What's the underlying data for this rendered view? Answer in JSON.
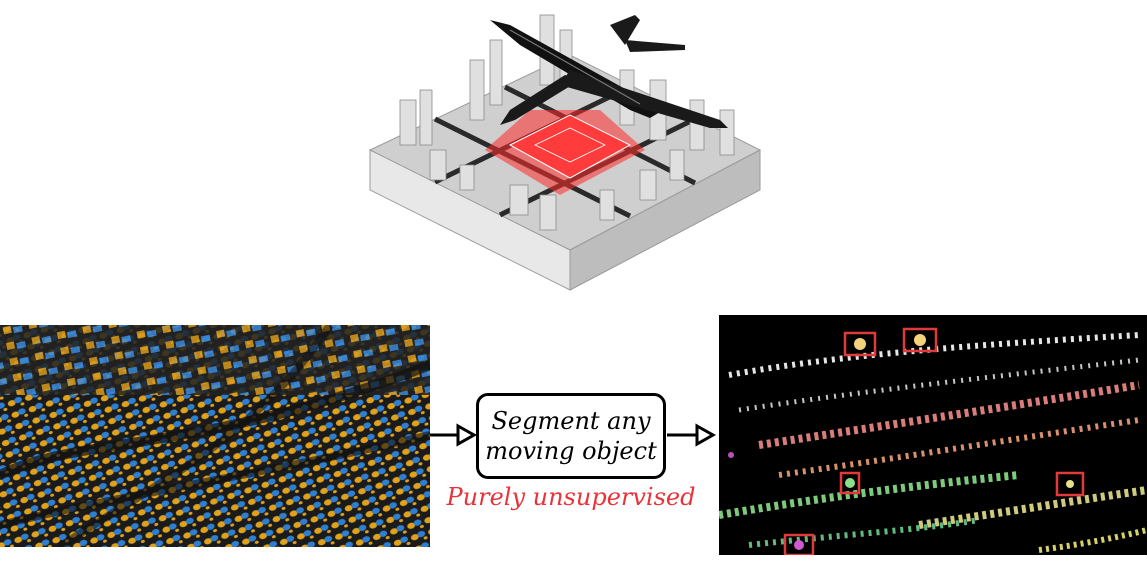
{
  "diagram": {
    "process_box": {
      "line1": "Segment any",
      "line2": "moving object"
    },
    "caption": "Purely unsupervised",
    "colors": {
      "caption": "#e8333a",
      "highlight_box": "#e03a3a",
      "box_border": "#000000",
      "event_yellow": "#e0a21a",
      "event_blue": "#2f7fd1",
      "seg_pink": "#f08a8a",
      "seg_green": "#8be08b",
      "seg_yellow": "#e6e08a",
      "seg_magenta": "#d05ad0"
    },
    "icons": {
      "top": "airplane-over-city-icon",
      "left": "event-camera-pointcloud-image",
      "right": "segmentation-result-image"
    }
  }
}
